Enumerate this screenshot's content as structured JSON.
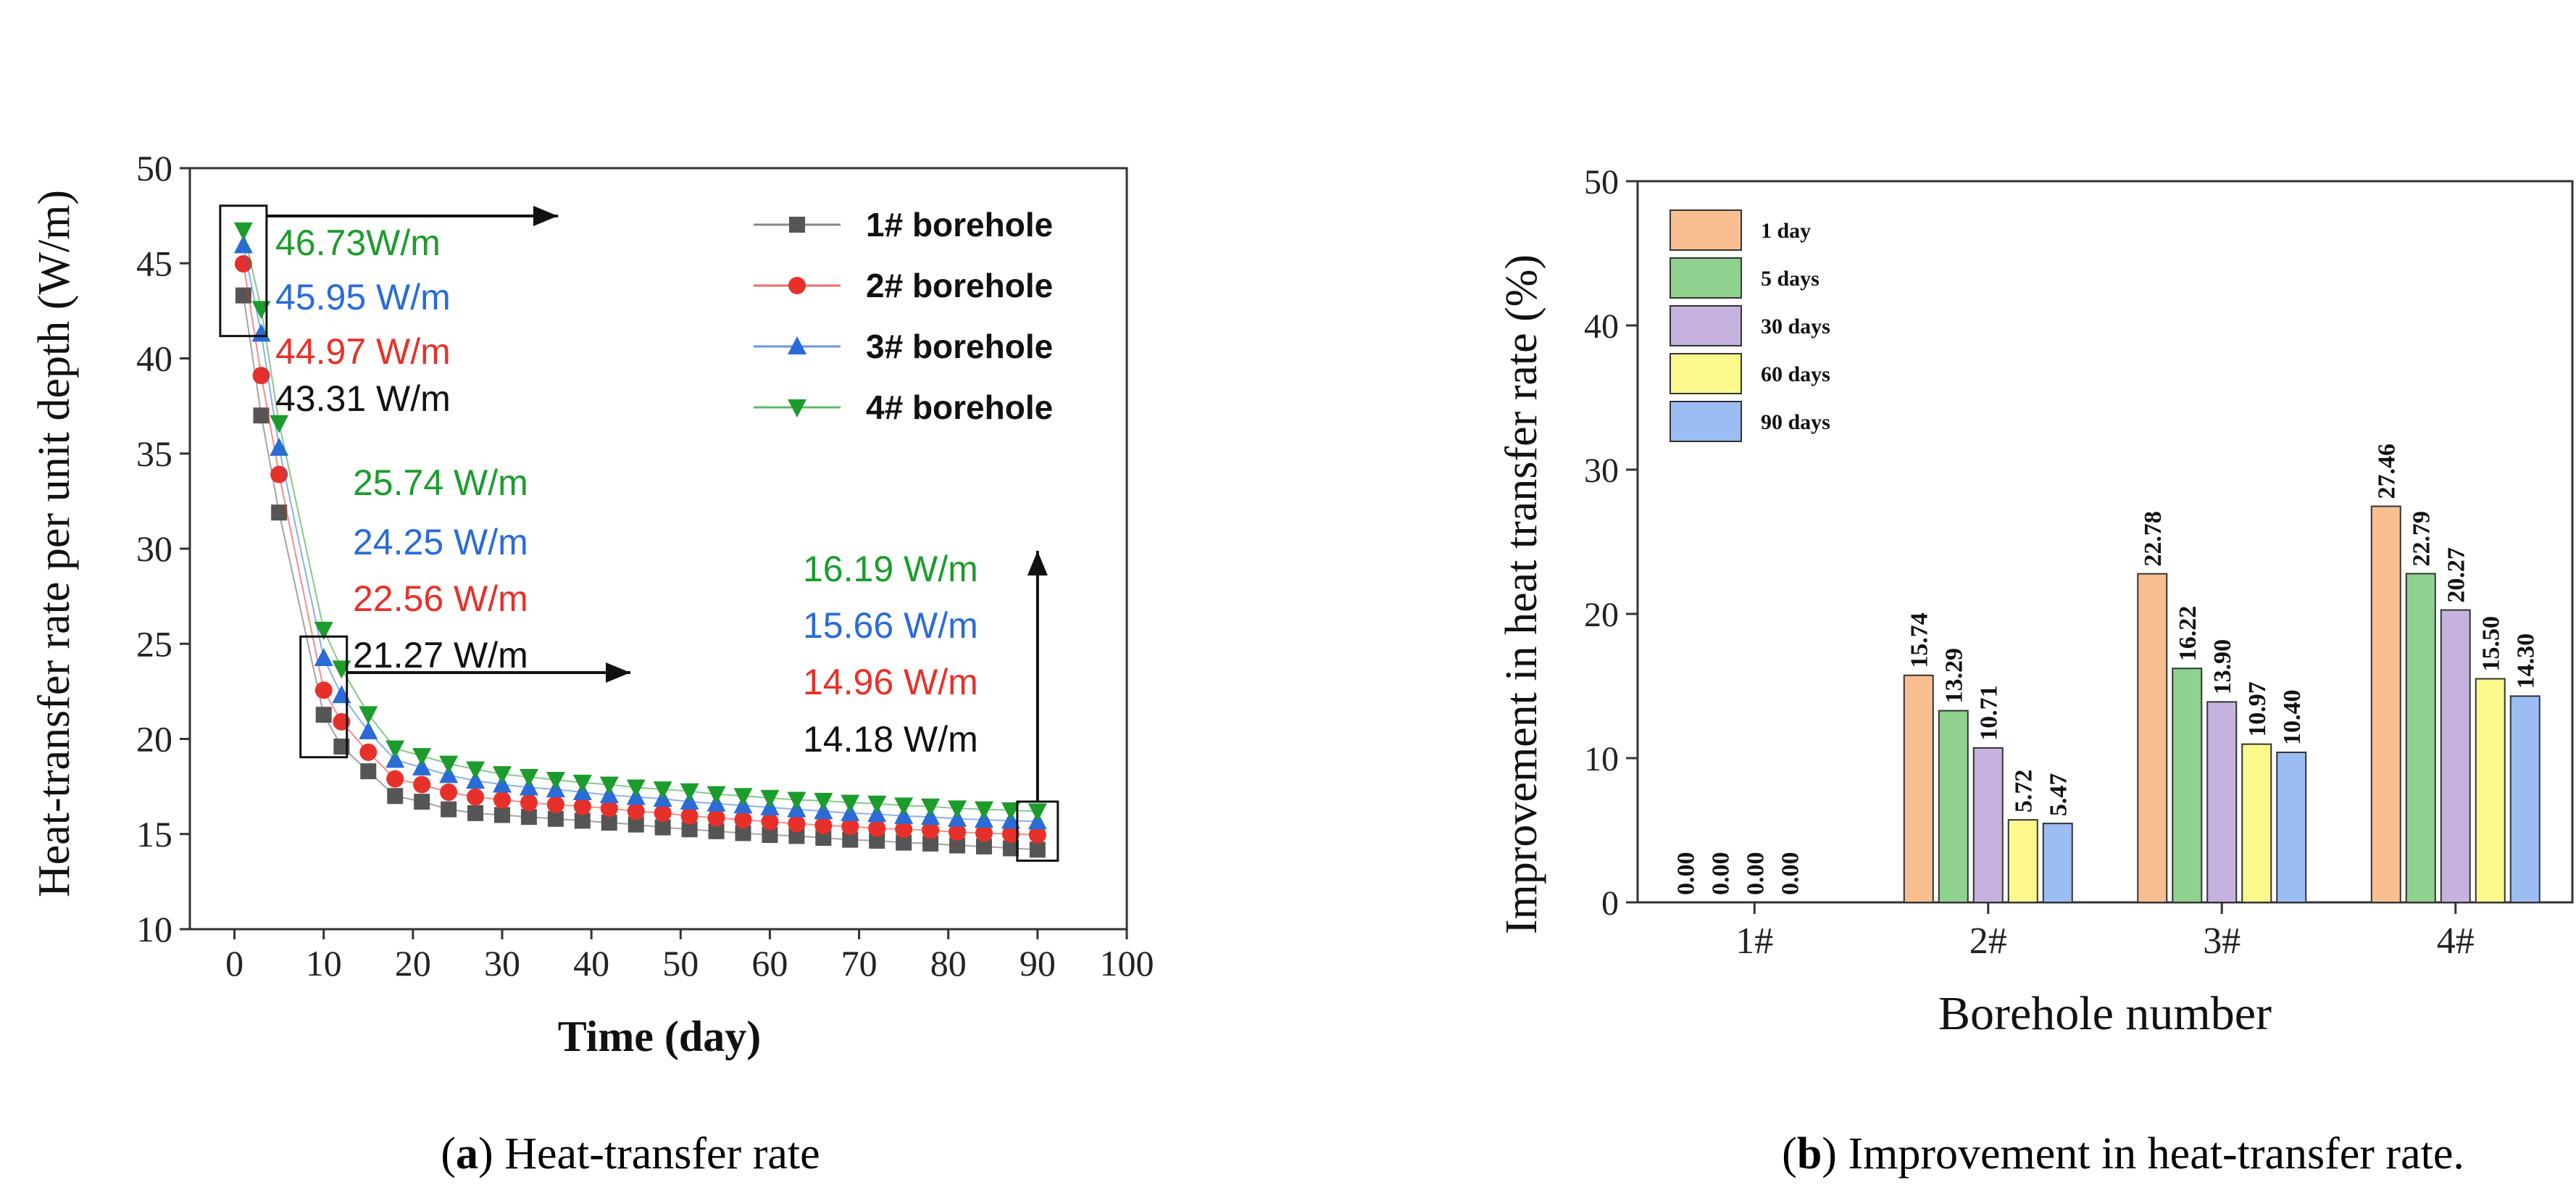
{
  "chart_data": [
    {
      "type": "line",
      "panel": "a",
      "caption_letter": "a",
      "caption_text": "Heat-transfer rate",
      "xlabel": "Time (day)",
      "ylabel": "Heat-transfer rate per unit depth (W/m)",
      "xlim": [
        -5,
        100
      ],
      "ylim": [
        10,
        50
      ],
      "xticks": [
        0,
        10,
        20,
        30,
        40,
        50,
        60,
        70,
        80,
        90,
        100
      ],
      "yticks": [
        10,
        15,
        20,
        25,
        30,
        35,
        40,
        45,
        50
      ],
      "legend_position": "top-right",
      "x": [
        1,
        3,
        5,
        10,
        12,
        15,
        18,
        21,
        24,
        27,
        30,
        33,
        36,
        39,
        42,
        45,
        48,
        51,
        54,
        57,
        60,
        63,
        66,
        69,
        72,
        75,
        78,
        81,
        84,
        87,
        90
      ],
      "series": [
        {
          "name": "1# borehole",
          "color": "#555555",
          "marker": "square",
          "values": [
            43.31,
            37.0,
            31.9,
            21.27,
            19.6,
            18.3,
            17.0,
            16.7,
            16.3,
            16.1,
            16.0,
            15.9,
            15.8,
            15.7,
            15.6,
            15.5,
            15.35,
            15.25,
            15.15,
            15.05,
            14.95,
            14.9,
            14.8,
            14.7,
            14.65,
            14.55,
            14.5,
            14.4,
            14.35,
            14.25,
            14.18
          ]
        },
        {
          "name": "2# borehole",
          "color": "#e8302a",
          "marker": "circle",
          "values": [
            44.97,
            39.1,
            33.9,
            22.56,
            20.9,
            19.3,
            17.9,
            17.6,
            17.2,
            16.95,
            16.8,
            16.65,
            16.55,
            16.45,
            16.35,
            16.2,
            16.1,
            15.95,
            15.85,
            15.75,
            15.65,
            15.55,
            15.45,
            15.4,
            15.3,
            15.25,
            15.2,
            15.1,
            15.05,
            15.0,
            14.96
          ]
        },
        {
          "name": "3# borehole",
          "color": "#2a6bd8",
          "marker": "triangle-up",
          "values": [
            45.95,
            41.3,
            35.3,
            24.25,
            22.3,
            20.4,
            18.9,
            18.5,
            18.1,
            17.8,
            17.6,
            17.45,
            17.35,
            17.2,
            17.05,
            16.95,
            16.85,
            16.7,
            16.6,
            16.5,
            16.4,
            16.3,
            16.2,
            16.1,
            16.05,
            15.95,
            15.9,
            15.8,
            15.75,
            15.7,
            15.66
          ]
        },
        {
          "name": "4# borehole",
          "color": "#1c9c2c",
          "marker": "triangle-down",
          "values": [
            46.73,
            42.6,
            36.6,
            25.74,
            23.7,
            21.3,
            19.5,
            19.1,
            18.7,
            18.4,
            18.15,
            18.0,
            17.85,
            17.7,
            17.6,
            17.45,
            17.35,
            17.25,
            17.1,
            17.0,
            16.9,
            16.8,
            16.75,
            16.65,
            16.6,
            16.5,
            16.45,
            16.35,
            16.3,
            16.25,
            16.19
          ]
        }
      ],
      "annotations": [
        {
          "group": "day1",
          "items": [
            {
              "text": "46.73W/m",
              "color": "#1c9c2c"
            },
            {
              "text": "45.95 W/m",
              "color": "#2a6bd8"
            },
            {
              "text": "44.97 W/m",
              "color": "#e8302a"
            },
            {
              "text": "43.31 W/m",
              "color": "#111111"
            }
          ]
        },
        {
          "group": "day10",
          "items": [
            {
              "text": "25.74 W/m",
              "color": "#1c9c2c"
            },
            {
              "text": "24.25 W/m",
              "color": "#2a6bd8"
            },
            {
              "text": "22.56 W/m",
              "color": "#e8302a"
            },
            {
              "text": "21.27 W/m",
              "color": "#111111"
            }
          ]
        },
        {
          "group": "day90",
          "items": [
            {
              "text": "16.19 W/m",
              "color": "#1c9c2c"
            },
            {
              "text": "15.66 W/m",
              "color": "#2a6bd8"
            },
            {
              "text": "14.96 W/m",
              "color": "#e8302a"
            },
            {
              "text": "14.18 W/m",
              "color": "#111111"
            }
          ]
        }
      ]
    },
    {
      "type": "bar",
      "panel": "b",
      "caption_letter": "b",
      "caption_text": "Improvement in heat-transfer rate.",
      "xlabel": "Borehole number",
      "ylabel": "Improvement in heat transfer rate (%)",
      "ylim": [
        0,
        50
      ],
      "yticks": [
        0,
        10,
        20,
        30,
        40,
        50
      ],
      "categories": [
        "1#",
        "2#",
        "3#",
        "4#"
      ],
      "legend_position": "top-left",
      "series": [
        {
          "name": "1 day",
          "color": "#f9bf91",
          "values": [
            0.0,
            15.74,
            22.78,
            27.46
          ],
          "labels": [
            "0.00",
            "15.74",
            "22.78",
            "27.46"
          ]
        },
        {
          "name": "5 days",
          "color": "#8fd18f",
          "values": [
            0.0,
            13.29,
            16.22,
            22.79
          ],
          "labels": [
            "0.00",
            "13.29",
            "16.22",
            "22.79"
          ]
        },
        {
          "name": "30 days",
          "color": "#c5b2de",
          "values": [
            0.0,
            10.71,
            13.9,
            20.27
          ],
          "labels": [
            "0.00",
            "10.71",
            "13.90",
            "20.27"
          ]
        },
        {
          "name": "60 days",
          "color": "#fbf98c",
          "values": [
            0.0,
            5.72,
            10.97,
            15.5
          ],
          "labels": [
            "0.00",
            "5.72",
            "10.97",
            "15.50"
          ]
        },
        {
          "name": "90 days",
          "color": "#9bbdf4",
          "values": [
            0.0,
            5.47,
            10.4,
            14.3
          ],
          "labels": [
            "",
            "5.47",
            "10.40",
            "14.30"
          ]
        }
      ]
    }
  ]
}
